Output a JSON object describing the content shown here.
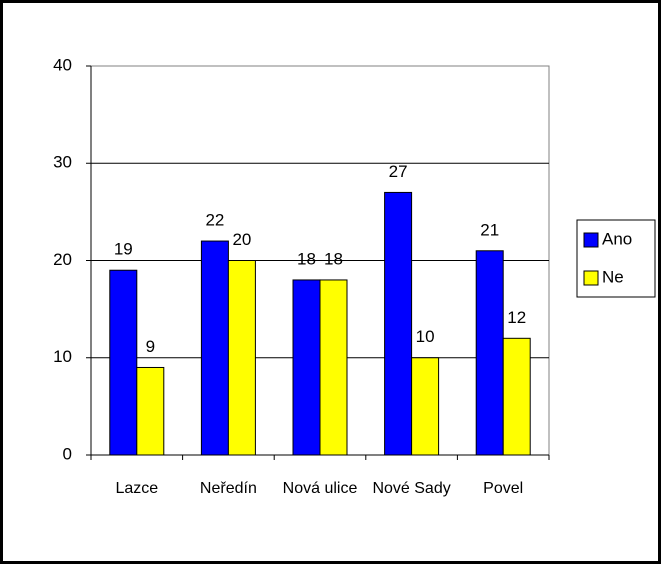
{
  "chart_data": {
    "type": "bar",
    "categories": [
      "Lazce",
      "Neředín",
      "Nová ulice",
      "Nové Sady",
      "Povel"
    ],
    "series": [
      {
        "name": "Ano",
        "color": "#0000ff",
        "values": [
          19,
          22,
          18,
          27,
          21
        ]
      },
      {
        "name": "Ne",
        "color": "#ffff00",
        "values": [
          9,
          20,
          18,
          10,
          12
        ]
      }
    ],
    "ylim": [
      0,
      40
    ],
    "yticks": [
      0,
      10,
      20,
      30,
      40
    ],
    "grid": true,
    "legend": "right"
  }
}
